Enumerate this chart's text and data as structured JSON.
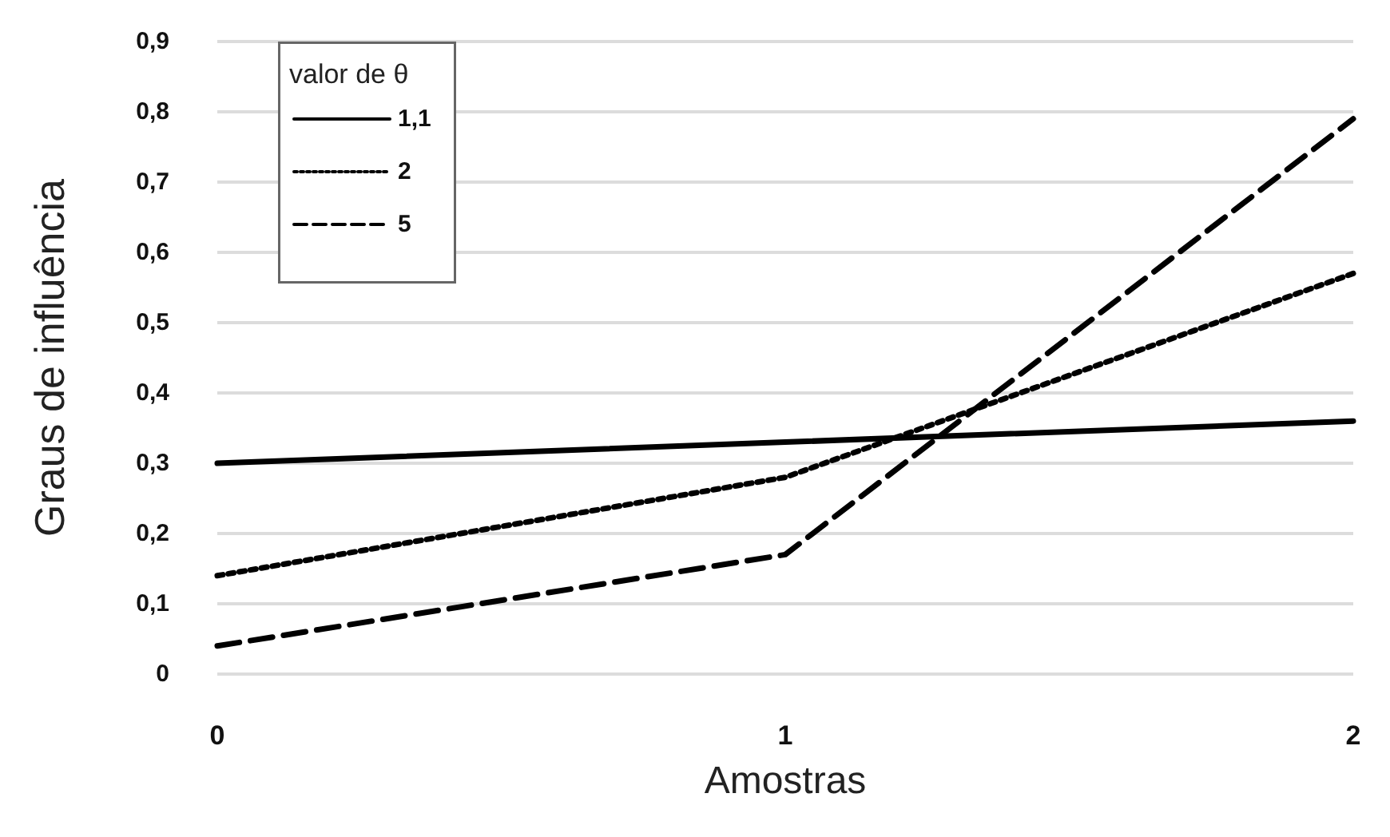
{
  "chart_data": {
    "type": "line",
    "xlabel": "Amostras",
    "ylabel": "Graus de influência",
    "legend_title": "valor de θ",
    "x": [
      0,
      1,
      2
    ],
    "series": [
      {
        "name": "1,1",
        "color": "#000000",
        "line_style": "solid",
        "values": [
          0.3,
          0.33,
          0.36
        ]
      },
      {
        "name": "2",
        "color": "#000000",
        "line_style": "dotted",
        "values": [
          0.14,
          0.28,
          0.57
        ]
      },
      {
        "name": "5",
        "color": "#000000",
        "line_style": "dashed",
        "values": [
          0.04,
          0.17,
          0.79
        ]
      }
    ],
    "xlim": [
      0,
      2
    ],
    "xticks": [
      0,
      1,
      2
    ],
    "ylim": [
      0,
      0.9
    ],
    "yticks": [
      0,
      {
        "value": 0.1,
        "label": "0,1"
      },
      {
        "value": 0.2,
        "label": "0,2"
      },
      {
        "value": 0.3,
        "label": "0,3"
      },
      {
        "value": 0.4,
        "label": "0,4"
      },
      {
        "value": 0.5,
        "label": "0,5"
      },
      {
        "value": 0.6,
        "label": "0,6"
      },
      {
        "value": 0.7,
        "label": "0,7"
      },
      {
        "value": 0.8,
        "label": "0,8"
      },
      {
        "value": 0.9,
        "label": "0,9"
      }
    ],
    "grid": "y",
    "legend": "top left",
    "marker": "none"
  }
}
